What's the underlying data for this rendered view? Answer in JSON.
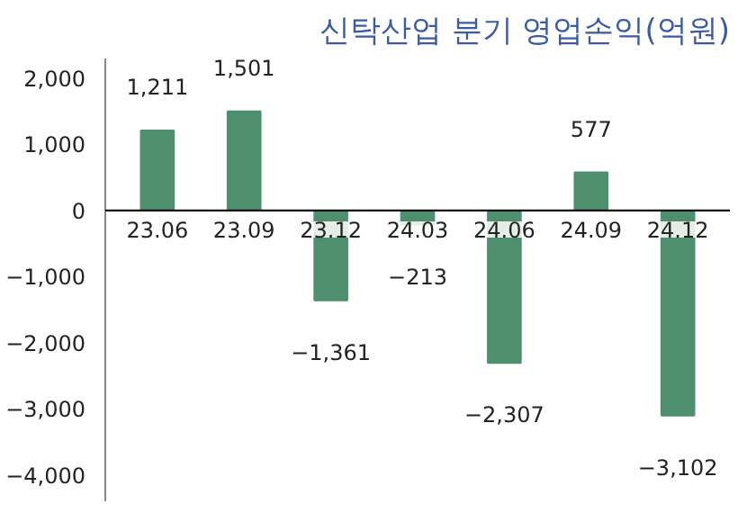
{
  "chart_data": {
    "type": "bar",
    "title": "신탁산업 분기 영업손익(억원)",
    "categories": [
      "23.06",
      "23.09",
      "23.12",
      "24.03",
      "24.06",
      "24.09",
      "24.12"
    ],
    "values": [
      1211,
      1501,
      -1361,
      -213,
      -2307,
      577,
      -3102
    ],
    "color": "#4e8f6e",
    "value_labels": [
      "1,211",
      "1,501",
      "−1,361",
      "−213",
      "−2,307",
      "577",
      "−3,102"
    ],
    "ylim": [
      -4400,
      2300
    ],
    "yticks": [
      {
        "value": 2000,
        "label": "2,000"
      },
      {
        "value": 1000,
        "label": "1,000"
      },
      0,
      {
        "value": -1000,
        "label": "−1,000"
      },
      {
        "value": -2000,
        "label": "−2,000"
      },
      {
        "value": -3000,
        "label": "−3,000"
      },
      {
        "value": -4000,
        "label": "−4,000"
      }
    ],
    "grid": false
  }
}
